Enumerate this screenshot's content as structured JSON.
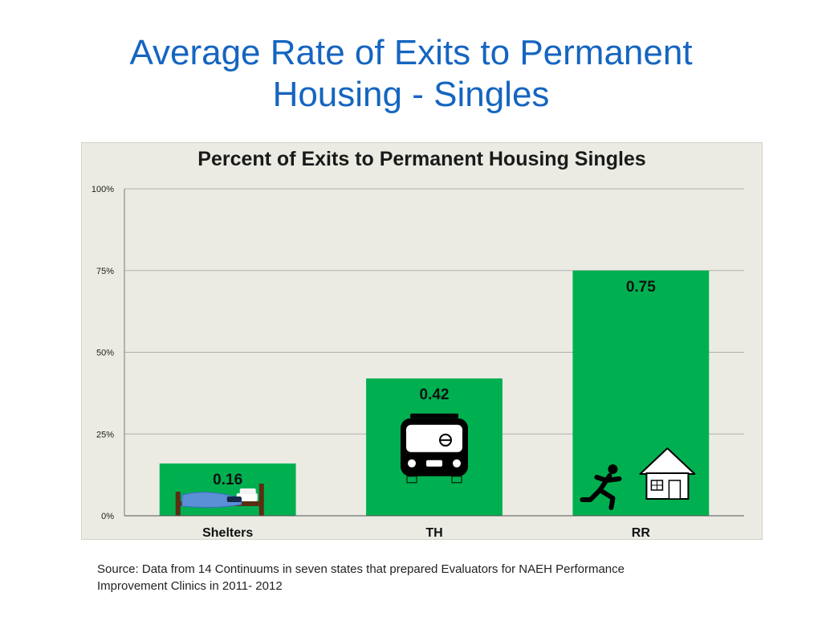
{
  "slide": {
    "title_line1": "Average Rate of Exits to Permanent",
    "title_line2": "Housing - Singles"
  },
  "source": {
    "line1": "Source: Data from 14 Continuums in seven states that prepared Evaluators for NAEH Performance",
    "line2": "Improvement  Clinics in 2011- 2012"
  },
  "colors": {
    "bar": "#00b050",
    "title": "#1565c0",
    "panel": "#ebebe3",
    "grid": "#b0b0b0"
  },
  "chart_data": {
    "type": "bar",
    "title": "Percent of Exits to Permanent Housing  Singles",
    "categories": [
      "Shelters",
      "TH",
      "RR"
    ],
    "values": [
      0.16,
      0.42,
      0.75
    ],
    "data_labels": [
      "0.16",
      "0.42",
      "0.75"
    ],
    "icons": [
      "bed-icon",
      "bus-icon",
      "running-person-to-house-icon"
    ],
    "ylim": [
      0,
      1
    ],
    "yticks": [
      0,
      0.25,
      0.5,
      0.75,
      1
    ],
    "ytick_labels": [
      "0%",
      "25%",
      "50%",
      "75%",
      "100%"
    ],
    "xlabel": "",
    "ylabel": "",
    "grid": true,
    "legend": "none"
  }
}
